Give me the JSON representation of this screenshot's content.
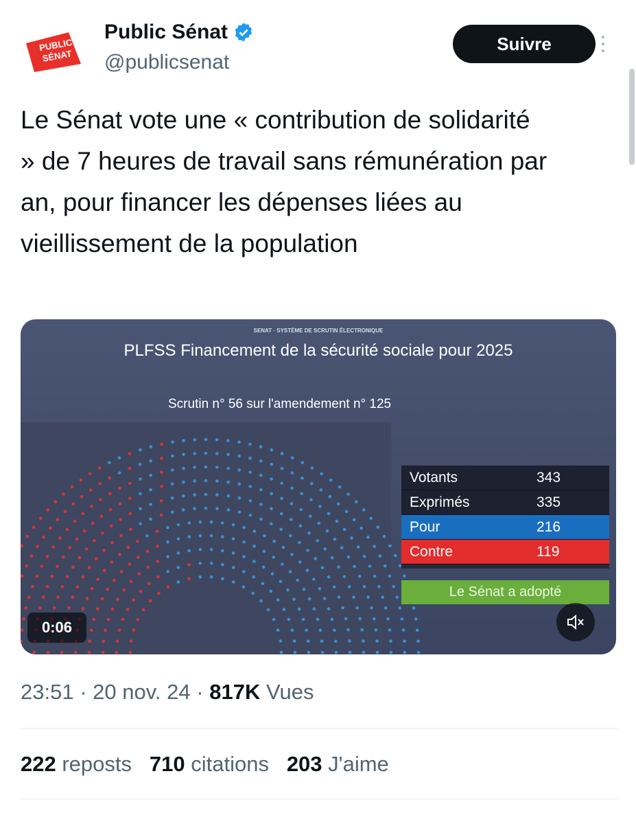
{
  "account": {
    "name": "Public Sénat",
    "handle": "@publicsenat",
    "logo_text": [
      "PUBLIC",
      "SÉNAT"
    ],
    "follow": "Suivre"
  },
  "tweet": {
    "text": "Le Sénat vote une « contribution de solidarité » de 7 heures de travail sans rémunération par an, pour financer les dépenses liées au vieillissement de la population"
  },
  "video": {
    "header": "SENAT · SYSTÈME DE SCRUTIN ÉLECTRONIQUE",
    "title": "PLFSS Financement de la sécurité sociale pour 2025",
    "scrutin": "Scrutin n° 56 sur l'amendement n°  125",
    "results": [
      {
        "label": "Votants",
        "value": 343
      },
      {
        "label": "Exprimés",
        "value": 335
      },
      {
        "label": "Pour",
        "value": 216
      },
      {
        "label": "Contre",
        "value": 119
      }
    ],
    "outcome": "Le Sénat a adopté",
    "duration": "0:06"
  },
  "meta": {
    "time": "23:51",
    "separator": "·",
    "date": "20 nov. 24",
    "views": "817K",
    "views_label": "Vues"
  },
  "stats": [
    {
      "count": 222,
      "label": "reposts"
    },
    {
      "count": 710,
      "label": "citations"
    },
    {
      "count": 203,
      "label": "J'aime"
    }
  ]
}
